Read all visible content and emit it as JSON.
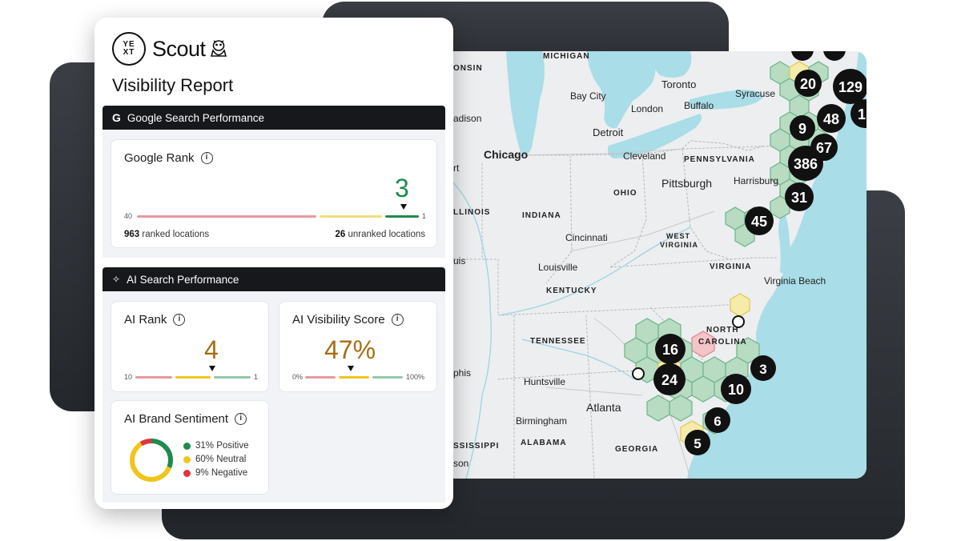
{
  "brand": {
    "yext_logo_text_top": "YE",
    "yext_logo_text_bottom": "XT",
    "product_name": "Scout"
  },
  "report": {
    "title": "Visibility Report"
  },
  "google_section": {
    "header": "Google Search Performance",
    "header_icon": "G",
    "rank_card": {
      "title": "Google Rank",
      "value": "3",
      "scale_min": "40",
      "scale_max": "1",
      "ranked_count": "963",
      "ranked_label": "ranked locations",
      "unranked_count": "26",
      "unranked_label": "unranked locations"
    }
  },
  "ai_section": {
    "header": "AI Search Performance",
    "header_icon": "sparkle-icon",
    "ai_rank": {
      "title": "AI Rank",
      "value": "4",
      "scale_min": "10",
      "scale_max": "1"
    },
    "ai_visibility": {
      "title": "AI Visibility Score",
      "value": "47%",
      "scale_min": "0%",
      "scale_max": "100%"
    },
    "sentiment": {
      "title": "AI Brand Sentiment",
      "legend": [
        {
          "label": "31% Positive",
          "color": "#1f8a4c",
          "percent": 31
        },
        {
          "label": "60% Neutral",
          "color": "#f0c419",
          "percent": 60
        },
        {
          "label": "9% Negative",
          "color": "#e0343f",
          "percent": 9
        }
      ]
    }
  },
  "map": {
    "region_labels": [
      "MICHIGAN",
      "ONSIN",
      "PENNSYLVANIA",
      "OHIO",
      "INDIANA",
      "LLINOIS",
      "WEST VIRGINIA",
      "VIRGINIA",
      "KENTUCKY",
      "TENNESSEE",
      "NORTH CAROLINA",
      "ALABAMA",
      "GEORGIA",
      "SSISSIPPI"
    ],
    "cities": [
      "Toronto",
      "Bay City",
      "London",
      "Buffalo",
      "Syracuse",
      "Detroit",
      "Chicago",
      "Cleveland",
      "Harrisburg",
      "Pittsburgh",
      "Cincinnati",
      "Louisville",
      "Virginia Beach",
      "Huntsville",
      "Atlanta",
      "Birmingham",
      "adison",
      "rt",
      "uis",
      "phis",
      "son"
    ],
    "cluster_counts": [
      "20",
      "129",
      "48",
      "9",
      "67",
      "386",
      "31",
      "45",
      "16",
      "24",
      "3",
      "10",
      "6",
      "5",
      "1"
    ]
  },
  "colors": {
    "accent_green": "#1f8a4c",
    "accent_gold": "#a86c14",
    "dark_bar": "#16181b",
    "water": "#a9dde7"
  }
}
